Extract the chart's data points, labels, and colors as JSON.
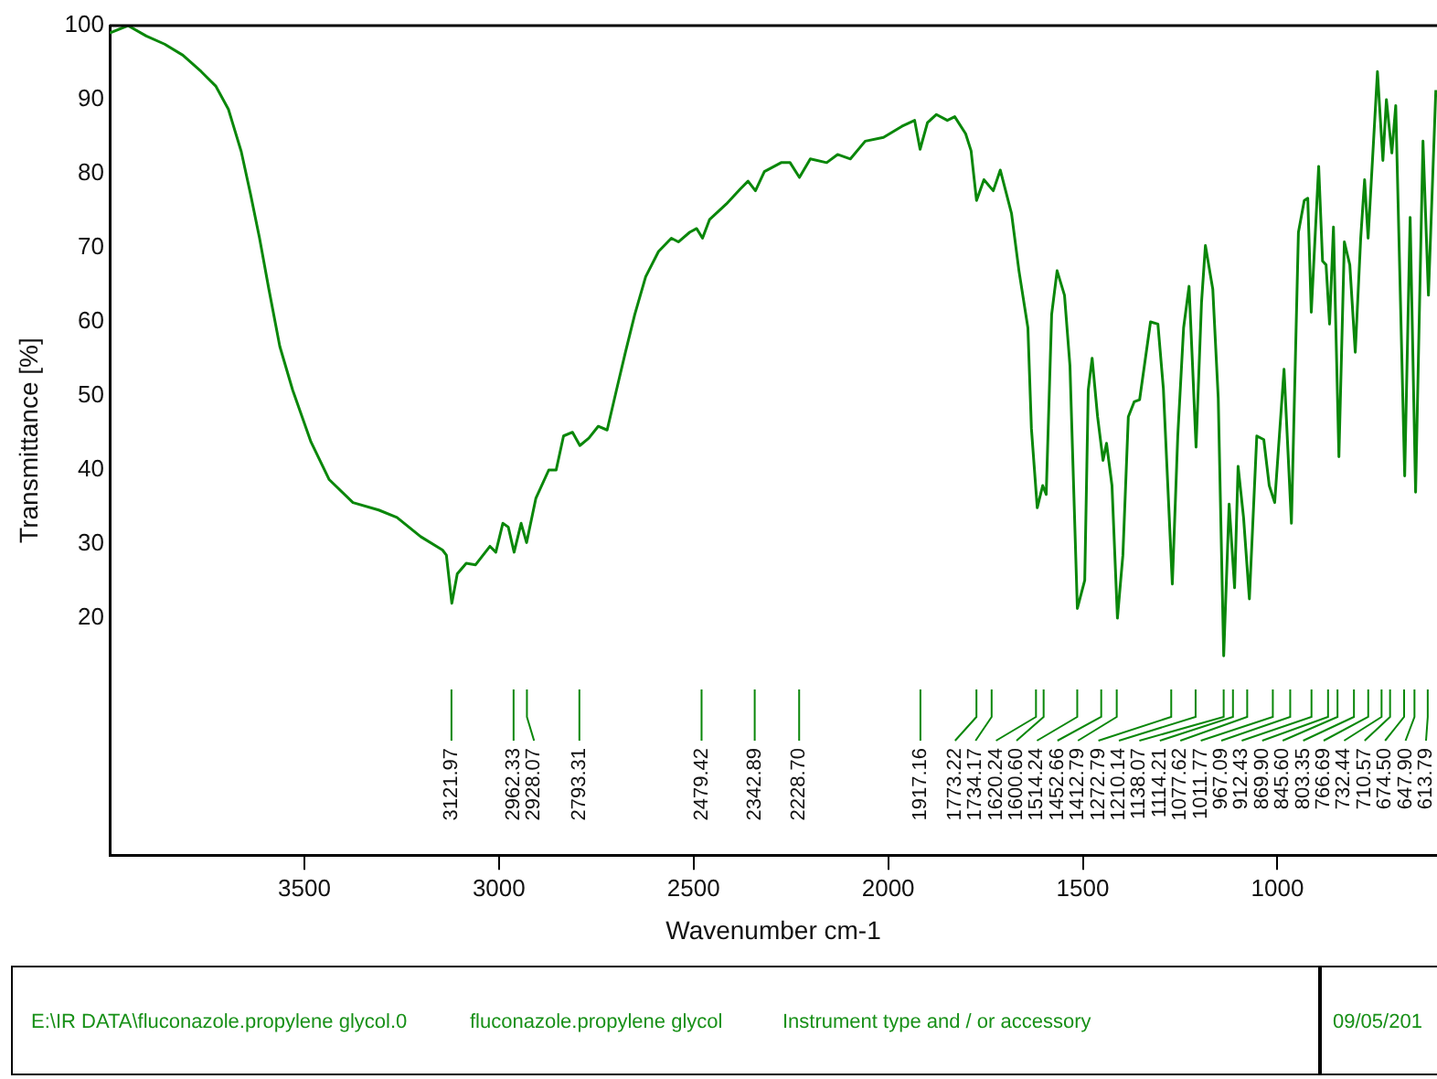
{
  "chart_data": {
    "type": "line",
    "xlabel": "Wavenumber cm-1",
    "ylabel": "Transmittance [%]",
    "xlim": [
      4000,
      590
    ],
    "xticks": [
      3500,
      3000,
      2500,
      2000,
      1500,
      1000
    ],
    "ylim": [
      -12,
      100
    ],
    "yticks": [
      20,
      30,
      40,
      50,
      60,
      70,
      80,
      90,
      100
    ],
    "grid": false,
    "legend": false,
    "marker": "none",
    "line_style": "solid",
    "series": [
      {
        "color": "#0a870a",
        "x": [
          4000,
          3953,
          3906,
          3859,
          3812,
          3765,
          3727,
          3695,
          3662,
          3638,
          3615,
          3591,
          3563,
          3530,
          3483,
          3436,
          3375,
          3309,
          3262,
          3201,
          3145,
          3135,
          3121,
          3107,
          3084,
          3060,
          3023,
          3008,
          2990,
          2976,
          2961,
          2943,
          2929,
          2905,
          2872,
          2853,
          2834,
          2811,
          2792,
          2769,
          2745,
          2722,
          2698,
          2675,
          2651,
          2623,
          2590,
          2557,
          2539,
          2510,
          2492,
          2477,
          2459,
          2416,
          2379,
          2360,
          2341,
          2318,
          2275,
          2252,
          2228,
          2200,
          2158,
          2130,
          2097,
          2059,
          2012,
          1965,
          1932,
          1918,
          1899,
          1876,
          1848,
          1829,
          1801,
          1787,
          1773,
          1754,
          1730,
          1712,
          1683,
          1664,
          1641,
          1632,
          1617,
          1603,
          1594,
          1580,
          1566,
          1547,
          1533,
          1514,
          1495,
          1486,
          1476,
          1462,
          1448,
          1439,
          1425,
          1411,
          1397,
          1383,
          1368,
          1354,
          1326,
          1307,
          1293,
          1270,
          1256,
          1241,
          1227,
          1218,
          1209,
          1195,
          1185,
          1166,
          1152,
          1138,
          1124,
          1110,
          1101,
          1087,
          1072,
          1053,
          1035,
          1021,
          1007,
          983,
          964,
          946,
          931,
          922,
          913,
          894,
          884,
          875,
          866,
          856,
          842,
          828,
          814,
          800,
          786,
          776,
          767,
          743,
          729,
          720,
          706,
          696,
          673,
          659,
          645,
          626,
          612,
          593
        ],
        "values": [
          99,
          100,
          98.6,
          97.5,
          96,
          93.8,
          91.8,
          88.7,
          83,
          77.2,
          71.3,
          64.4,
          56.7,
          50.8,
          43.8,
          38.7,
          35.6,
          34.6,
          33.6,
          31,
          29.2,
          28.5,
          22,
          26,
          27.4,
          27.2,
          29.7,
          28.9,
          32.8,
          32.3,
          28.9,
          32.8,
          30.2,
          36.2,
          40,
          40,
          44.6,
          45.1,
          43.3,
          44.3,
          45.9,
          45.4,
          50.8,
          55.9,
          61,
          66.1,
          69.5,
          71.3,
          70.8,
          72.1,
          72.6,
          71.3,
          73.8,
          75.9,
          78,
          79,
          77.7,
          80.3,
          81.5,
          81.5,
          79.5,
          82,
          81.5,
          82.6,
          82,
          84.4,
          84.9,
          86.4,
          87.2,
          83.3,
          86.9,
          88,
          87.2,
          87.7,
          85.4,
          83.1,
          76.4,
          79.2,
          77.7,
          80.5,
          74.6,
          66.9,
          59.2,
          45.6,
          34.9,
          37.9,
          36.7,
          61,
          66.9,
          63.6,
          54.1,
          21.3,
          25.1,
          50.8,
          55.1,
          47.2,
          41.3,
          43.6,
          37.9,
          20,
          28.5,
          47.2,
          49.2,
          49.5,
          60,
          59.7,
          51,
          24.6,
          44.6,
          59.2,
          64.8,
          54.1,
          43.1,
          62.6,
          70.3,
          64.4,
          49.7,
          14.9,
          35.4,
          24.1,
          40.5,
          33.6,
          22.6,
          44.6,
          44.1,
          37.9,
          35.6,
          53.6,
          32.8,
          72.1,
          76.4,
          76.7,
          61.3,
          81,
          68.2,
          67.7,
          59.7,
          72.8,
          41.8,
          70.8,
          67.7,
          55.9,
          71.3,
          79.2,
          71.3,
          93.8,
          81.8,
          90,
          82.8,
          89.2,
          39.2,
          74.1,
          37,
          84.4,
          63.6,
          91.3
        ]
      }
    ],
    "annotations": [
      {
        "text": "3121.97",
        "x": 3121.97
      },
      {
        "text": "2962.33",
        "x": 2962.33
      },
      {
        "text": "2928.07",
        "x": 2928.07
      },
      {
        "text": "2793.31",
        "x": 2793.31
      },
      {
        "text": "2479.42",
        "x": 2479.42
      },
      {
        "text": "2342.89",
        "x": 2342.89
      },
      {
        "text": "2228.70",
        "x": 2228.7
      },
      {
        "text": "1917.16",
        "x": 1917.16
      },
      {
        "text": "1773.22",
        "x": 1773.22
      },
      {
        "text": "1734.17",
        "x": 1734.17
      },
      {
        "text": "1620.24",
        "x": 1620.24
      },
      {
        "text": "1600.60",
        "x": 1600.6
      },
      {
        "text": "1514.24",
        "x": 1514.24
      },
      {
        "text": "1452.66",
        "x": 1452.66
      },
      {
        "text": "1412.79",
        "x": 1412.79
      },
      {
        "text": "1272.79",
        "x": 1272.79
      },
      {
        "text": "1210.14",
        "x": 1210.14
      },
      {
        "text": "1138.07",
        "x": 1138.07
      },
      {
        "text": "1114.21",
        "x": 1114.21
      },
      {
        "text": "1077.62",
        "x": 1077.62
      },
      {
        "text": "1011.77",
        "x": 1011.77
      },
      {
        "text": "967.09",
        "x": 967.09
      },
      {
        "text": "912.43",
        "x": 912.43
      },
      {
        "text": "869.90",
        "x": 869.9
      },
      {
        "text": "845.60",
        "x": 845.6
      },
      {
        "text": "803.35",
        "x": 803.35
      },
      {
        "text": "766.69",
        "x": 766.69
      },
      {
        "text": "732.44",
        "x": 732.44
      },
      {
        "text": "710.57",
        "x": 710.57
      },
      {
        "text": "674.50",
        "x": 674.5
      },
      {
        "text": "647.90",
        "x": 647.9
      },
      {
        "text": "613.79",
        "x": 613.79
      },
      "E:\\IR DATA\\fluconazole.propylene glycol.0",
      "fluconazole.propylene glycol",
      "Instrument type and / or accessory",
      "09/05/201"
    ]
  }
}
